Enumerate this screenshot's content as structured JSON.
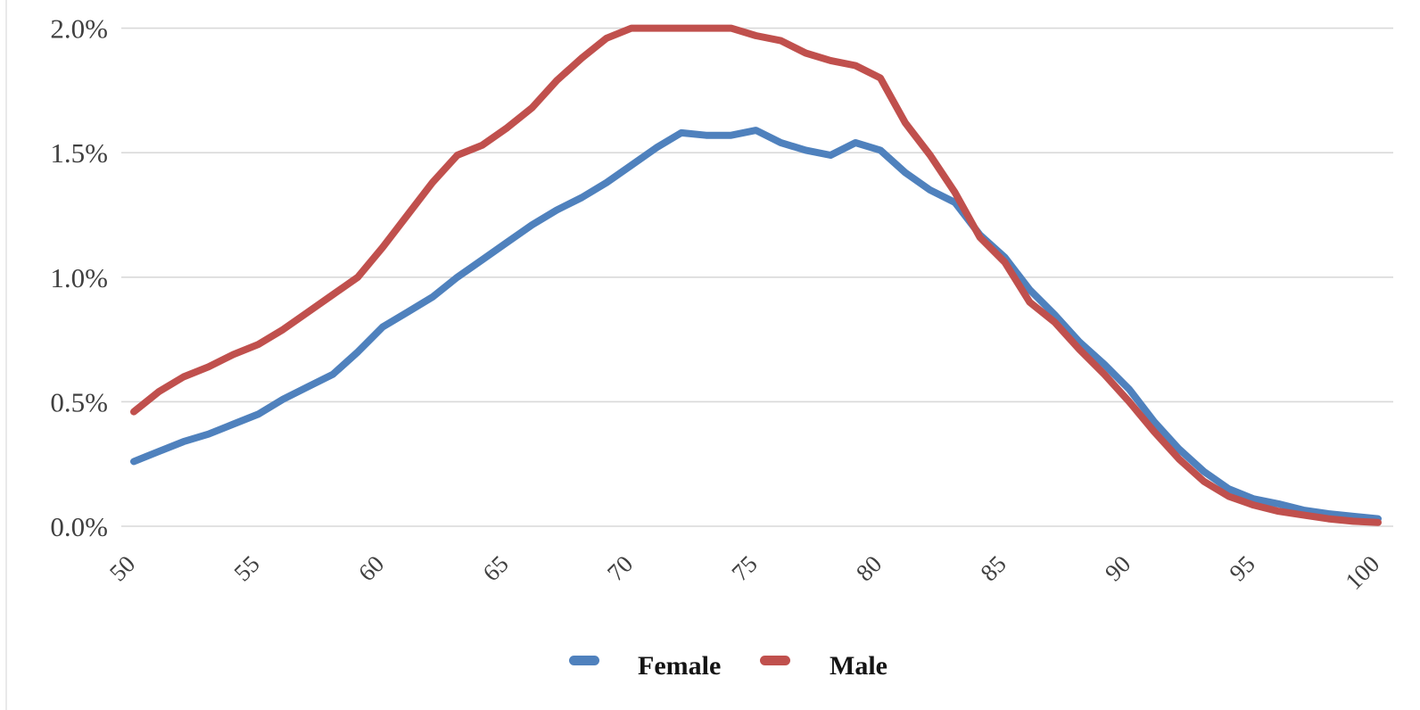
{
  "chart_data": {
    "type": "line",
    "title": "",
    "xlabel": "",
    "ylabel": "",
    "x": [
      50,
      51,
      52,
      53,
      54,
      55,
      56,
      57,
      58,
      59,
      60,
      61,
      62,
      63,
      64,
      65,
      66,
      67,
      68,
      69,
      70,
      71,
      72,
      73,
      74,
      75,
      76,
      77,
      78,
      79,
      80,
      81,
      82,
      83,
      84,
      85,
      86,
      87,
      88,
      89,
      90,
      91,
      92,
      93,
      94,
      95,
      96,
      97,
      98,
      99,
      100
    ],
    "series": [
      {
        "name": "Female",
        "color": "#4F81BD",
        "values_percent": [
          0.26,
          0.3,
          0.34,
          0.37,
          0.41,
          0.45,
          0.51,
          0.56,
          0.61,
          0.7,
          0.8,
          0.86,
          0.92,
          1.0,
          1.07,
          1.14,
          1.21,
          1.27,
          1.32,
          1.38,
          1.45,
          1.52,
          1.58,
          1.57,
          1.57,
          1.59,
          1.54,
          1.51,
          1.49,
          1.54,
          1.51,
          1.42,
          1.35,
          1.3,
          1.17,
          1.08,
          0.95,
          0.85,
          0.74,
          0.65,
          0.55,
          0.42,
          0.31,
          0.22,
          0.15,
          0.11,
          0.09,
          0.065,
          0.05,
          0.04,
          0.03
        ]
      },
      {
        "name": "Male",
        "color": "#C0504D",
        "values_percent": [
          0.46,
          0.54,
          0.6,
          0.64,
          0.69,
          0.73,
          0.79,
          0.86,
          0.93,
          1.0,
          1.12,
          1.25,
          1.38,
          1.49,
          1.53,
          1.6,
          1.68,
          1.79,
          1.88,
          1.96,
          2.0,
          2.0,
          2.0,
          2.0,
          2.0,
          1.97,
          1.95,
          1.9,
          1.87,
          1.85,
          1.8,
          1.62,
          1.49,
          1.34,
          1.16,
          1.06,
          0.9,
          0.82,
          0.71,
          0.61,
          0.5,
          0.38,
          0.27,
          0.18,
          0.12,
          0.085,
          0.06,
          0.045,
          0.03,
          0.02,
          0.015
        ]
      }
    ],
    "x_ticks": [
      "50",
      "55",
      "60",
      "65",
      "70",
      "75",
      "80",
      "85",
      "90",
      "95",
      "100"
    ],
    "x_tick_values": [
      50,
      55,
      60,
      65,
      70,
      75,
      80,
      85,
      90,
      95,
      100
    ],
    "y_ticks": [
      "0.0%",
      "0.5%",
      "1.0%",
      "1.5%",
      "2.0%"
    ],
    "y_tick_values": [
      0.0,
      0.5,
      1.0,
      1.5,
      2.0
    ],
    "xlim": [
      50,
      100
    ],
    "ylim": [
      0.0,
      2.0
    ],
    "grid": "horizontal-only",
    "legend_position": "bottom-center"
  },
  "legend": {
    "items": [
      {
        "label": "Female",
        "swatch": "dash",
        "color": "#4F81BD"
      },
      {
        "label": "Male",
        "swatch": "dash",
        "color": "#C0504D"
      }
    ]
  },
  "colors": {
    "background": "#FFFFFF",
    "gridline": "#D9D9D9",
    "axis_tick_text": "#3F3F3F",
    "legend_text": "#141414",
    "female_line": "#4F81BD",
    "male_line": "#C0504D",
    "left_edge_line": "#E9E9EA"
  }
}
